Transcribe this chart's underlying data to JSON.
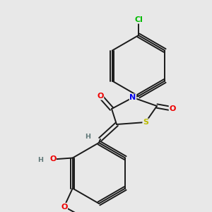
{
  "bg_color": "#e8e8e8",
  "bond_color": "#1a1a1a",
  "bw": 1.4,
  "dbo": 0.009,
  "atom_colors": {
    "H": "#607878",
    "N": "#0000ee",
    "O": "#ee0000",
    "S": "#bbbb00",
    "Cl": "#00bb00"
  },
  "fs": 8.0,
  "fss": 6.8,
  "figw": 3.0,
  "figh": 3.0,
  "dpi": 100
}
